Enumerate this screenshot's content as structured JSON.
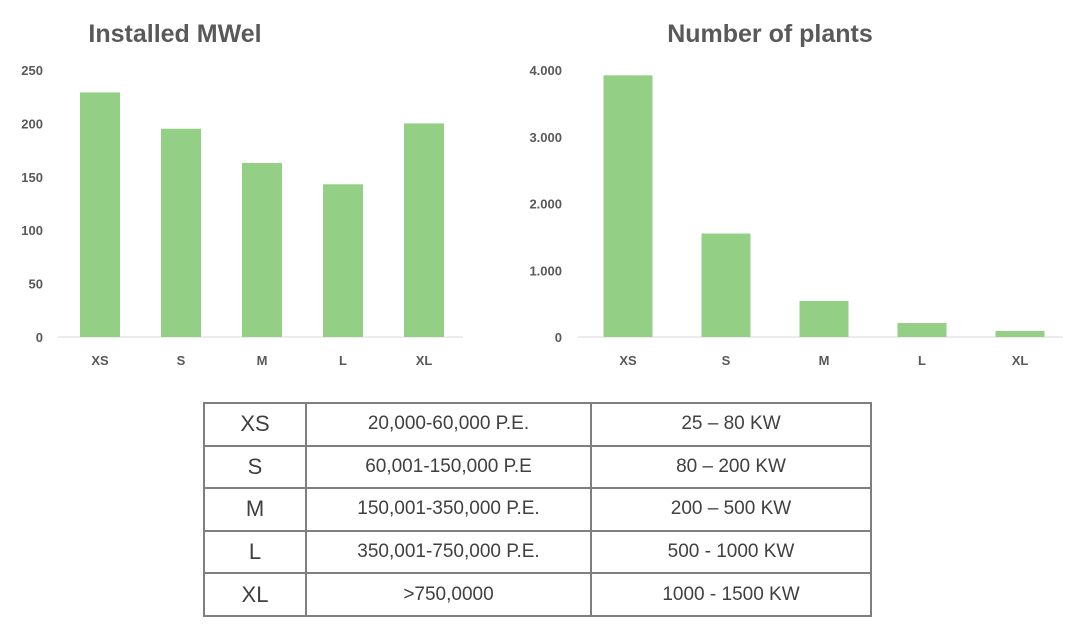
{
  "chart_data": [
    {
      "type": "bar",
      "title": "Installed MWel",
      "categories": [
        "XS",
        "S",
        "M",
        "L",
        "XL"
      ],
      "values": [
        229,
        195,
        163,
        143,
        200
      ],
      "ylim": [
        0,
        250
      ],
      "yticks": [
        "0",
        "50",
        "100",
        "150",
        "200",
        "250"
      ],
      "ytick_values": [
        0,
        50,
        100,
        150,
        200,
        250
      ],
      "grid": false,
      "color": "#93cf85"
    },
    {
      "type": "bar",
      "title": "Number of plants",
      "categories": [
        "XS",
        "S",
        "M",
        "L",
        "XL"
      ],
      "values": [
        3920,
        1550,
        540,
        210,
        90
      ],
      "ylim": [
        0,
        4000
      ],
      "yticks": [
        "0",
        "1.000",
        "2.000",
        "3.000",
        "4.000"
      ],
      "ytick_values": [
        0,
        1000,
        2000,
        3000,
        4000
      ],
      "grid": false,
      "color": "#93cf85"
    }
  ],
  "size_table": {
    "rows": [
      {
        "size": "XS",
        "pe": "20,000-60,000 P.E.",
        "kw": "25 – 80 KW"
      },
      {
        "size": "S",
        "pe": "60,001-150,000 P.E",
        "kw": "80 – 200 KW"
      },
      {
        "size": "M",
        "pe": "150,001-350,000 P.E.",
        "kw": "200 – 500 KW"
      },
      {
        "size": "L",
        "pe": "350,001-750,000 P.E.",
        "kw": "500 -  1000 KW"
      },
      {
        "size": "XL",
        "pe": ">750,0000",
        "kw": "1000 - 1500 KW"
      }
    ]
  }
}
